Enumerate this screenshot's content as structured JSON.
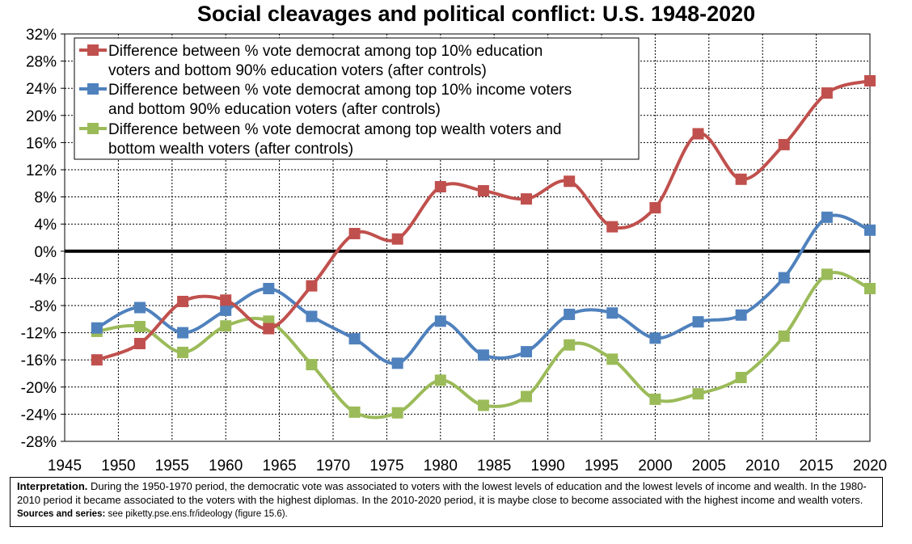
{
  "chart_data": {
    "type": "line",
    "title": "Social cleavages and political conflict: U.S. 1948-2020",
    "x": [
      1948,
      1952,
      1956,
      1960,
      1964,
      1968,
      1972,
      1976,
      1980,
      1984,
      1988,
      1992,
      1996,
      2000,
      2004,
      2008,
      2012,
      2016,
      2020
    ],
    "xlim": [
      1945,
      2020
    ],
    "ylim": [
      -28,
      32
    ],
    "x_ticks": [
      "1945",
      "1950",
      "1955",
      "1960",
      "1965",
      "1970",
      "1975",
      "1980",
      "1985",
      "1990",
      "1995",
      "2000",
      "2005",
      "2010",
      "2015",
      "2020"
    ],
    "y_ticks": [
      "-28%",
      "-24%",
      "-20%",
      "-16%",
      "-12%",
      "-8%",
      "-4%",
      "0%",
      "4%",
      "8%",
      "12%",
      "16%",
      "20%",
      "24%",
      "28%",
      "32%"
    ],
    "grid": true,
    "legend_position": "top-left",
    "series": [
      {
        "name": "Difference between % vote democrat among top 10% education voters and bottom 90% education voters (after controls)",
        "legend_lines": [
          "Difference between % vote democrat among top 10% education",
          "voters and bottom 90% education voters (after controls)"
        ],
        "color": "#C0504D",
        "values": [
          -16,
          -13.6,
          -7.4,
          -7.2,
          -11.4,
          -5.1,
          2.6,
          1.8,
          9.5,
          8.9,
          7.7,
          10.3,
          3.6,
          6.4,
          17.3,
          10.6,
          15.7,
          23.3,
          25.1
        ]
      },
      {
        "name": "Difference between % vote democrat among top 10% income voters and bottom 90% education voters (after controls)",
        "legend_lines": [
          "Difference between % vote democrat among top 10% income voters",
          "and bottom 90% education voters (after controls)"
        ],
        "color": "#4F81BD",
        "values": [
          -11.3,
          -8.3,
          -12,
          -8.7,
          -5.5,
          -9.6,
          -12.9,
          -16.5,
          -10.3,
          -15.3,
          -14.8,
          -9.3,
          -9.1,
          -12.8,
          -10.4,
          -9.4,
          -3.9,
          5,
          3.1
        ]
      },
      {
        "name": "Difference between % vote democrat among top wealth voters and bottom wealth voters (after controls)",
        "legend_lines": [
          "Difference between % vote democrat among top wealth voters and",
          "bottom wealth voters (after controls)"
        ],
        "color": "#9BBB59",
        "values": [
          -11.8,
          -11.1,
          -14.9,
          -11,
          -10.3,
          -16.7,
          -23.7,
          -23.8,
          -19,
          -22.7,
          -21.4,
          -13.8,
          -15.9,
          -21.8,
          -21,
          -18.6,
          -12.5,
          -3.4,
          -5.5
        ]
      }
    ]
  },
  "note": {
    "label": "Interpretation.",
    "text": " During the 1950-1970 period, the democratic vote was associated to voters with the lowest levels of education and the lowest levels of income and wealth. In the 1980-2010 period it became associated to the voters with the highest diplomas. In the 2010-2020 period, it is maybe close to become associated with the highest income and wealth voters. ",
    "sources_label": "Sources and series:",
    "sources_text": " see piketty.pse.ens.fr/ideology (figure 15.6)."
  }
}
